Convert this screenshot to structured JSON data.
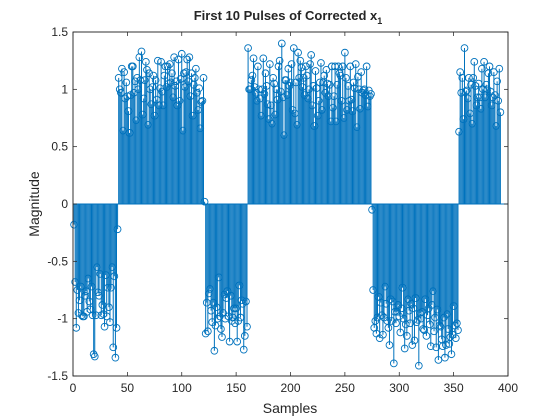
{
  "chart_data": {
    "type": "stem",
    "title": "First 10 Pulses of Corrected x",
    "title_subscript": "1",
    "xlabel": "Samples",
    "ylabel": "Magnitude",
    "xlim": [
      0,
      400
    ],
    "ylim": [
      -1.5,
      1.5
    ],
    "xticks": [
      0,
      50,
      100,
      150,
      200,
      250,
      300,
      350,
      400
    ],
    "yticks": [
      -1.5,
      -1,
      -0.5,
      0,
      0.5,
      1,
      1.5
    ],
    "xtick_labels": [
      "0",
      "50",
      "100",
      "150",
      "200",
      "250",
      "300",
      "350",
      "400"
    ],
    "ytick_labels": [
      "-1.5",
      "-1",
      "-0.5",
      "0",
      "0.5",
      "1",
      "1.5"
    ],
    "grid": false,
    "color": "#0072bd",
    "x_start": 1,
    "x_step": 1,
    "series": [
      {
        "values": [
          -0.18,
          -0.68,
          -1.08,
          -0.75,
          -0.95,
          -0.84,
          -0.72,
          -0.97,
          -0.98,
          -0.98,
          -0.8,
          -0.76,
          -0.94,
          -0.65,
          -0.85,
          -0.92,
          -0.72,
          -0.97,
          -1.31,
          -1.33,
          -0.97,
          -0.55,
          -0.77,
          -0.8,
          -0.61,
          -0.97,
          -0.88,
          -0.96,
          -1.07,
          -0.62,
          -0.98,
          -0.73,
          -0.9,
          -1.03,
          -0.73,
          -0.55,
          -1.25,
          -0.63,
          -1.34,
          -1.08,
          -0.22,
          1.1,
          1.0,
          0.97,
          1.18,
          0.64,
          1.15,
          0.92,
          1.06,
          0.94,
          0.81,
          0.62,
          0.95,
          1.2,
          1.2,
          0.97,
          1.07,
          0.73,
          1.1,
          1.0,
          1.28,
          1.08,
          1.33,
          0.78,
          0.92,
          1.08,
          1.24,
          1.17,
          0.69,
          1.14,
          1.0,
          0.87,
          1.02,
          1.12,
          0.77,
          1.08,
          0.91,
          1.25,
          0.86,
          1.01,
          1.24,
          0.98,
          0.86,
          1.12,
          1.2,
          1.02,
          1.2,
          1.05,
          1.22,
          1.06,
          1.14,
          0.93,
          1.28,
          1.03,
          1.07,
          0.86,
          1.26,
          0.9,
          1.09,
          1.31,
          0.64,
          1.14,
          1.02,
          1.15,
          1.26,
          1.07,
          1.28,
          0.94,
          1.14,
          0.77,
          1.04,
          1.1,
          1.18,
          0.97,
          0.82,
          1.01,
          0.66,
          0.89,
          0.9,
          1.1,
          0.02,
          -1.13,
          -0.86,
          -1.11,
          -0.78,
          -0.74,
          -0.93,
          -1.03,
          -0.86,
          -1.28,
          -1.06,
          -0.9,
          -1.0,
          -0.64,
          -0.98,
          -1.09,
          -1.16,
          -0.95,
          -0.79,
          -1.0,
          -0.82,
          -0.76,
          -0.98,
          -1.2,
          -0.8,
          -1.02,
          -0.99,
          -0.91,
          -1.04,
          -0.91,
          -1.2,
          -1.02,
          -0.71,
          -0.99,
          -0.84,
          -0.87,
          -1.27,
          -1.15,
          -0.85,
          -1.07,
          1.36,
          1.0,
          1.0,
          1.08,
          1.12,
          1.27,
          1.02,
          0.97,
          0.9,
          1.2,
          1.0,
          0.92,
          0.77,
          1.0,
          1.27,
          0.96,
          1.14,
          1.03,
          0.87,
          0.74,
          1.22,
          0.86,
          0.7,
          1.1,
          1.05,
          0.78,
          1.0,
          0.91,
          1.2,
          1.25,
          0.98,
          1.4,
          0.93,
          0.6,
          1.08,
          1.08,
          0.95,
          1.18,
          1.03,
          1.06,
          1.22,
          0.82,
          1.36,
          0.79,
          1.06,
          0.69,
          1.32,
          1.1,
          1.25,
          1.19,
          1.02,
          1.1,
          0.95,
          1.2,
          1.12,
          0.92,
          1.0,
          1.22,
          1.3,
          0.86,
          1.03,
          0.68,
          1.16,
          1.01,
          0.77,
          0.9,
          1.06,
          1.23,
          0.82,
          1.06,
          1.12,
          0.97,
          1.17,
          1.05,
          0.94,
          1.04,
          0.72,
          1.2,
          0.84,
          0.94,
          1.2,
          0.72,
          1.04,
          1.2,
          1.14,
          1.12,
          0.9,
          1.2,
          0.75,
          1.32,
          1.1,
          0.82,
          1.03,
          0.9,
          1.2,
          0.91,
          0.81,
          1.06,
          1.01,
          1.22,
          0.67,
          1.11,
          1.0,
          0.83,
          1.15,
          0.97,
          0.99,
          1.0,
          0.95,
          1.2,
          0.85,
          0.99,
          0.94,
          0.96,
          -0.05,
          -0.75,
          -1.08,
          -1.02,
          -1.13,
          -0.99,
          -0.81,
          -1.17,
          -0.86,
          -0.97,
          -1.14,
          -0.99,
          -0.72,
          -0.87,
          -1.02,
          -1.08,
          -1.23,
          -0.83,
          -1.02,
          -0.85,
          -1.39,
          -0.94,
          -1.04,
          -0.94,
          -0.88,
          -0.98,
          -1.12,
          -0.91,
          -0.73,
          -1.0,
          -1.26,
          -1.05,
          -1.15,
          -0.83,
          -0.93,
          -1.04,
          -0.87,
          -1.23,
          -0.91,
          -1.19,
          -0.82,
          -1.03,
          -1.01,
          -1.41,
          -0.95,
          -1.0,
          -0.94,
          -1.09,
          -1.1,
          -0.83,
          -1.15,
          -0.97,
          -0.91,
          -1.05,
          -1.24,
          -0.88,
          -0.76,
          -1.11,
          -0.99,
          -1.25,
          -0.92,
          -1.36,
          -1.06,
          -1.07,
          -1.18,
          -1.24,
          -0.99,
          -1.34,
          -1.23,
          -0.96,
          -1.09,
          -1.22,
          -1.16,
          -1.31,
          -1.14,
          -0.89,
          -1.06,
          -1.17,
          -1.04,
          -1.1,
          0.63,
          1.15,
          0.97,
          1.1,
          0.74,
          1.36,
          0.98,
          0.99,
          0.92,
          1.1,
          0.79,
          1.04,
          0.7,
          1.1,
          1.24,
          1.03,
          0.86,
          0.93,
          1.05,
          0.93,
          0.83,
          1.18,
          1.0,
          1.24,
          0.93,
          1.04,
          1.0,
          1.14,
          1.2,
          0.98,
          0.86,
          0.93,
          1.15,
          0.95,
          0.68,
          1.07,
          0.9,
          1.18,
          0.8
        ]
      }
    ]
  }
}
